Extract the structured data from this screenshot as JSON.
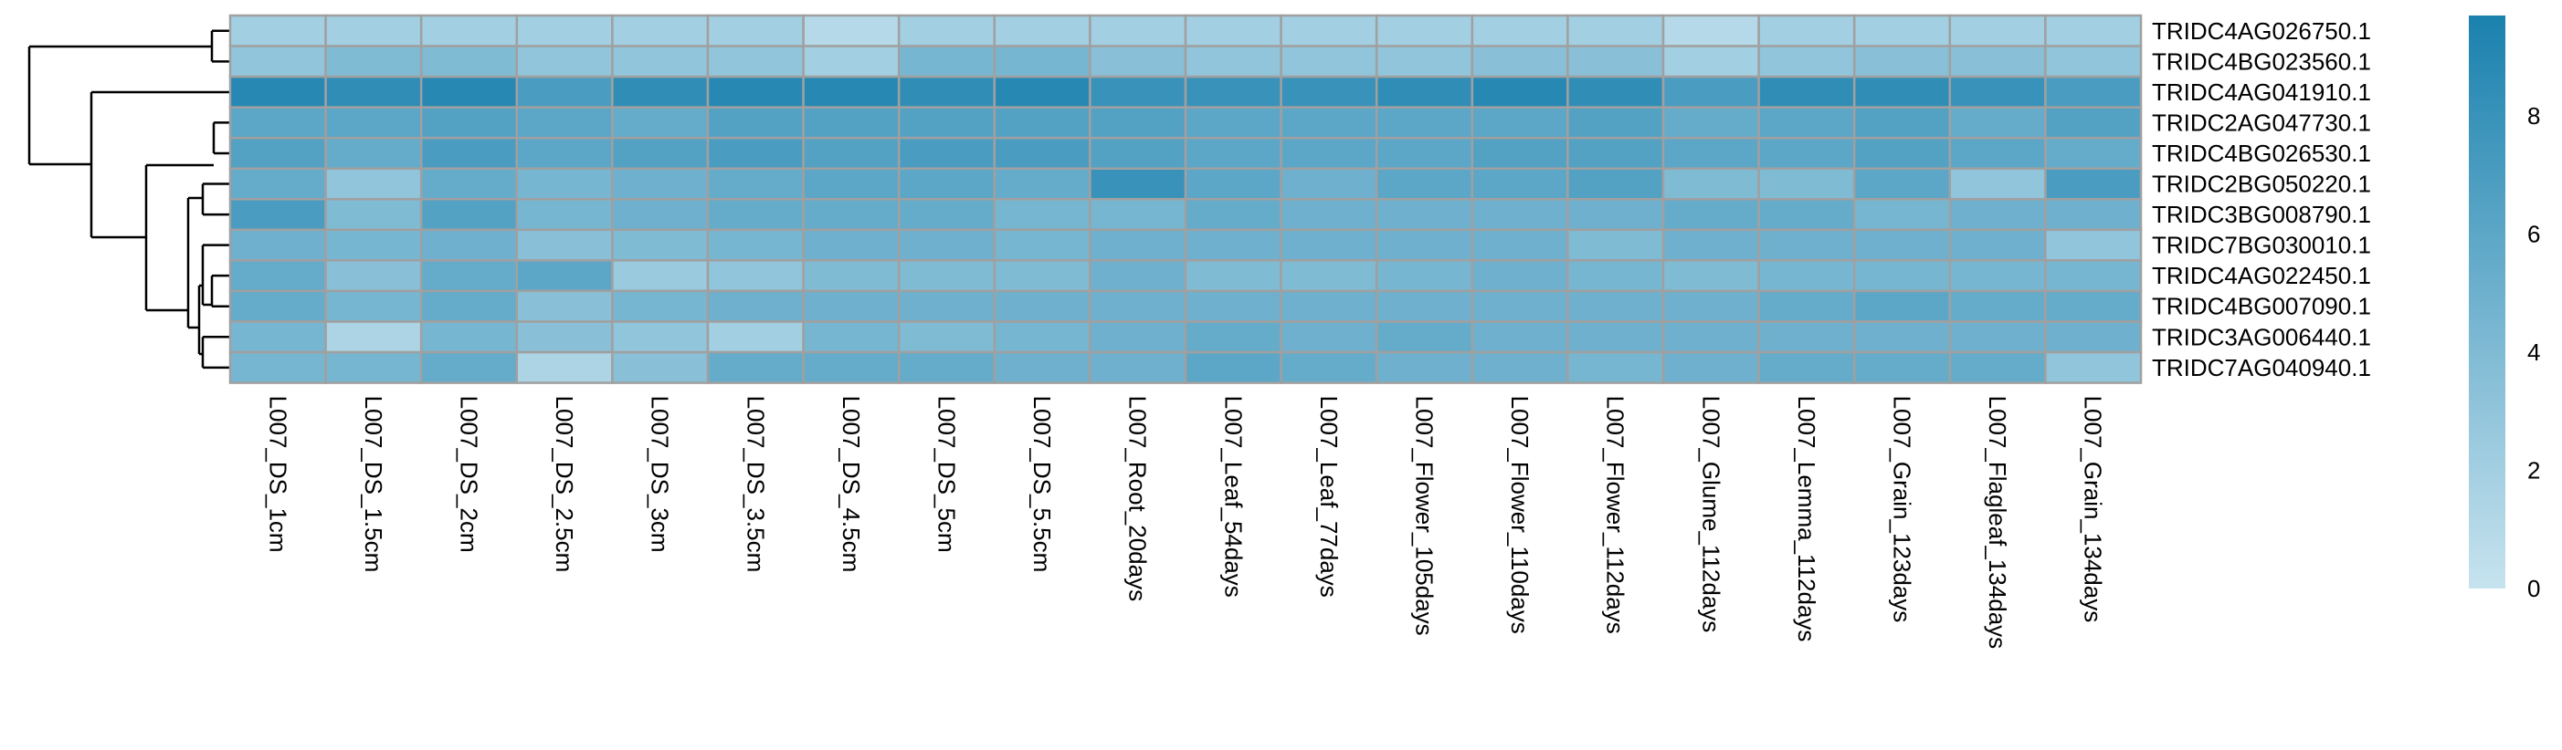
{
  "chart_data": {
    "type": "heatmap",
    "rows": [
      "TRIDC4AG026750.1",
      "TRIDC4BG023560.1",
      "TRIDC4AG041910.1",
      "TRIDC2AG047730.1",
      "TRIDC4BG026530.1",
      "TRIDC2BG050220.1",
      "TRIDC3BG008790.1",
      "TRIDC7BG030010.1",
      "TRIDC4AG022450.1",
      "TRIDC4BG007090.1",
      "TRIDC3AG006440.1",
      "TRIDC7AG040940.1"
    ],
    "columns": [
      "L007_DS_1cm",
      "L007_DS_1.5cm",
      "L007_DS_2cm",
      "L007_DS_2.5cm",
      "L007_DS_3cm",
      "L007_DS_3.5cm",
      "L007_DS_4.5cm",
      "L007_DS_5cm",
      "L007_DS_5.5cm",
      "L007_Root_20days",
      "L007_Leaf_54days",
      "L007_Leaf_77days",
      "L007_Flower_105days",
      "L007_Flower_110days",
      "L007_Flower_112days",
      "L007_Glume_112days",
      "L007_Lemma_112days",
      "L007_Grain_123days",
      "L007_Flagleaf_134days",
      "L007_Grain_134days"
    ],
    "values": [
      [
        2.0,
        2.0,
        2.0,
        2.0,
        2.0,
        2.0,
        1.0,
        2.0,
        2.0,
        2.0,
        2.0,
        2.0,
        2.0,
        2.0,
        2.0,
        1.0,
        2.0,
        2.0,
        2.0,
        2.0
      ],
      [
        3.0,
        4.0,
        4.0,
        3.0,
        3.0,
        3.0,
        2.0,
        4.5,
        4.5,
        3.5,
        3.0,
        3.0,
        3.0,
        3.5,
        3.5,
        2.0,
        3.0,
        3.5,
        3.5,
        3.0
      ],
      [
        9.0,
        8.5,
        9.0,
        7.0,
        8.5,
        9.0,
        9.0,
        8.5,
        9.0,
        8.0,
        8.0,
        8.0,
        8.5,
        9.0,
        8.5,
        7.0,
        8.5,
        8.5,
        8.0,
        7.0
      ],
      [
        6.0,
        6.0,
        6.5,
        6.0,
        5.5,
        6.5,
        6.5,
        6.5,
        6.5,
        6.5,
        6.0,
        6.0,
        6.0,
        6.0,
        6.5,
        5.5,
        6.0,
        6.5,
        5.5,
        6.5
      ],
      [
        6.5,
        5.5,
        7.0,
        6.0,
        6.5,
        7.0,
        6.5,
        7.0,
        7.0,
        6.5,
        6.0,
        6.0,
        6.0,
        6.5,
        6.5,
        6.0,
        6.0,
        6.5,
        6.0,
        5.5
      ],
      [
        5.5,
        3.0,
        5.5,
        4.5,
        5.0,
        5.5,
        6.0,
        6.0,
        5.5,
        8.0,
        6.0,
        5.0,
        6.0,
        6.0,
        6.5,
        4.0,
        4.0,
        6.0,
        3.0,
        7.0
      ],
      [
        7.0,
        4.0,
        6.5,
        4.5,
        5.0,
        5.5,
        5.5,
        5.5,
        4.5,
        4.5,
        5.5,
        5.0,
        5.0,
        5.0,
        5.0,
        5.5,
        5.5,
        4.5,
        5.0,
        5.0
      ],
      [
        5.0,
        4.5,
        5.0,
        3.5,
        4.0,
        4.5,
        5.0,
        5.0,
        4.5,
        5.0,
        5.0,
        5.0,
        5.0,
        5.0,
        4.0,
        5.0,
        5.0,
        5.0,
        5.0,
        3.0
      ],
      [
        5.5,
        3.5,
        5.5,
        6.0,
        2.5,
        3.0,
        4.0,
        4.0,
        4.0,
        5.0,
        4.0,
        4.0,
        4.5,
        5.0,
        4.5,
        4.0,
        4.5,
        4.5,
        4.5,
        4.5
      ],
      [
        5.5,
        4.5,
        5.5,
        3.5,
        4.5,
        5.0,
        5.0,
        5.0,
        5.0,
        5.0,
        5.0,
        5.0,
        5.0,
        5.0,
        5.0,
        5.0,
        5.5,
        6.0,
        5.5,
        5.5
      ],
      [
        4.5,
        1.5,
        4.5,
        3.5,
        3.0,
        2.0,
        4.5,
        4.0,
        4.5,
        5.0,
        5.5,
        5.0,
        5.5,
        5.0,
        5.0,
        5.0,
        5.0,
        5.0,
        5.0,
        5.0
      ],
      [
        4.5,
        4.5,
        5.5,
        1.5,
        3.5,
        5.5,
        5.5,
        5.5,
        5.0,
        5.0,
        6.0,
        5.5,
        5.0,
        5.0,
        4.5,
        5.0,
        5.5,
        5.5,
        5.5,
        3.0
      ]
    ],
    "color_scale": {
      "min": 0,
      "max": 9.7,
      "low_color": "#c7e3ef",
      "high_color": "#1a81ae"
    },
    "legend_ticks": [
      0,
      2,
      4,
      6,
      8
    ],
    "cell_border_color": "#a0a0a0",
    "dendrogram": "rows",
    "title": "",
    "xlabel": "",
    "ylabel": ""
  }
}
